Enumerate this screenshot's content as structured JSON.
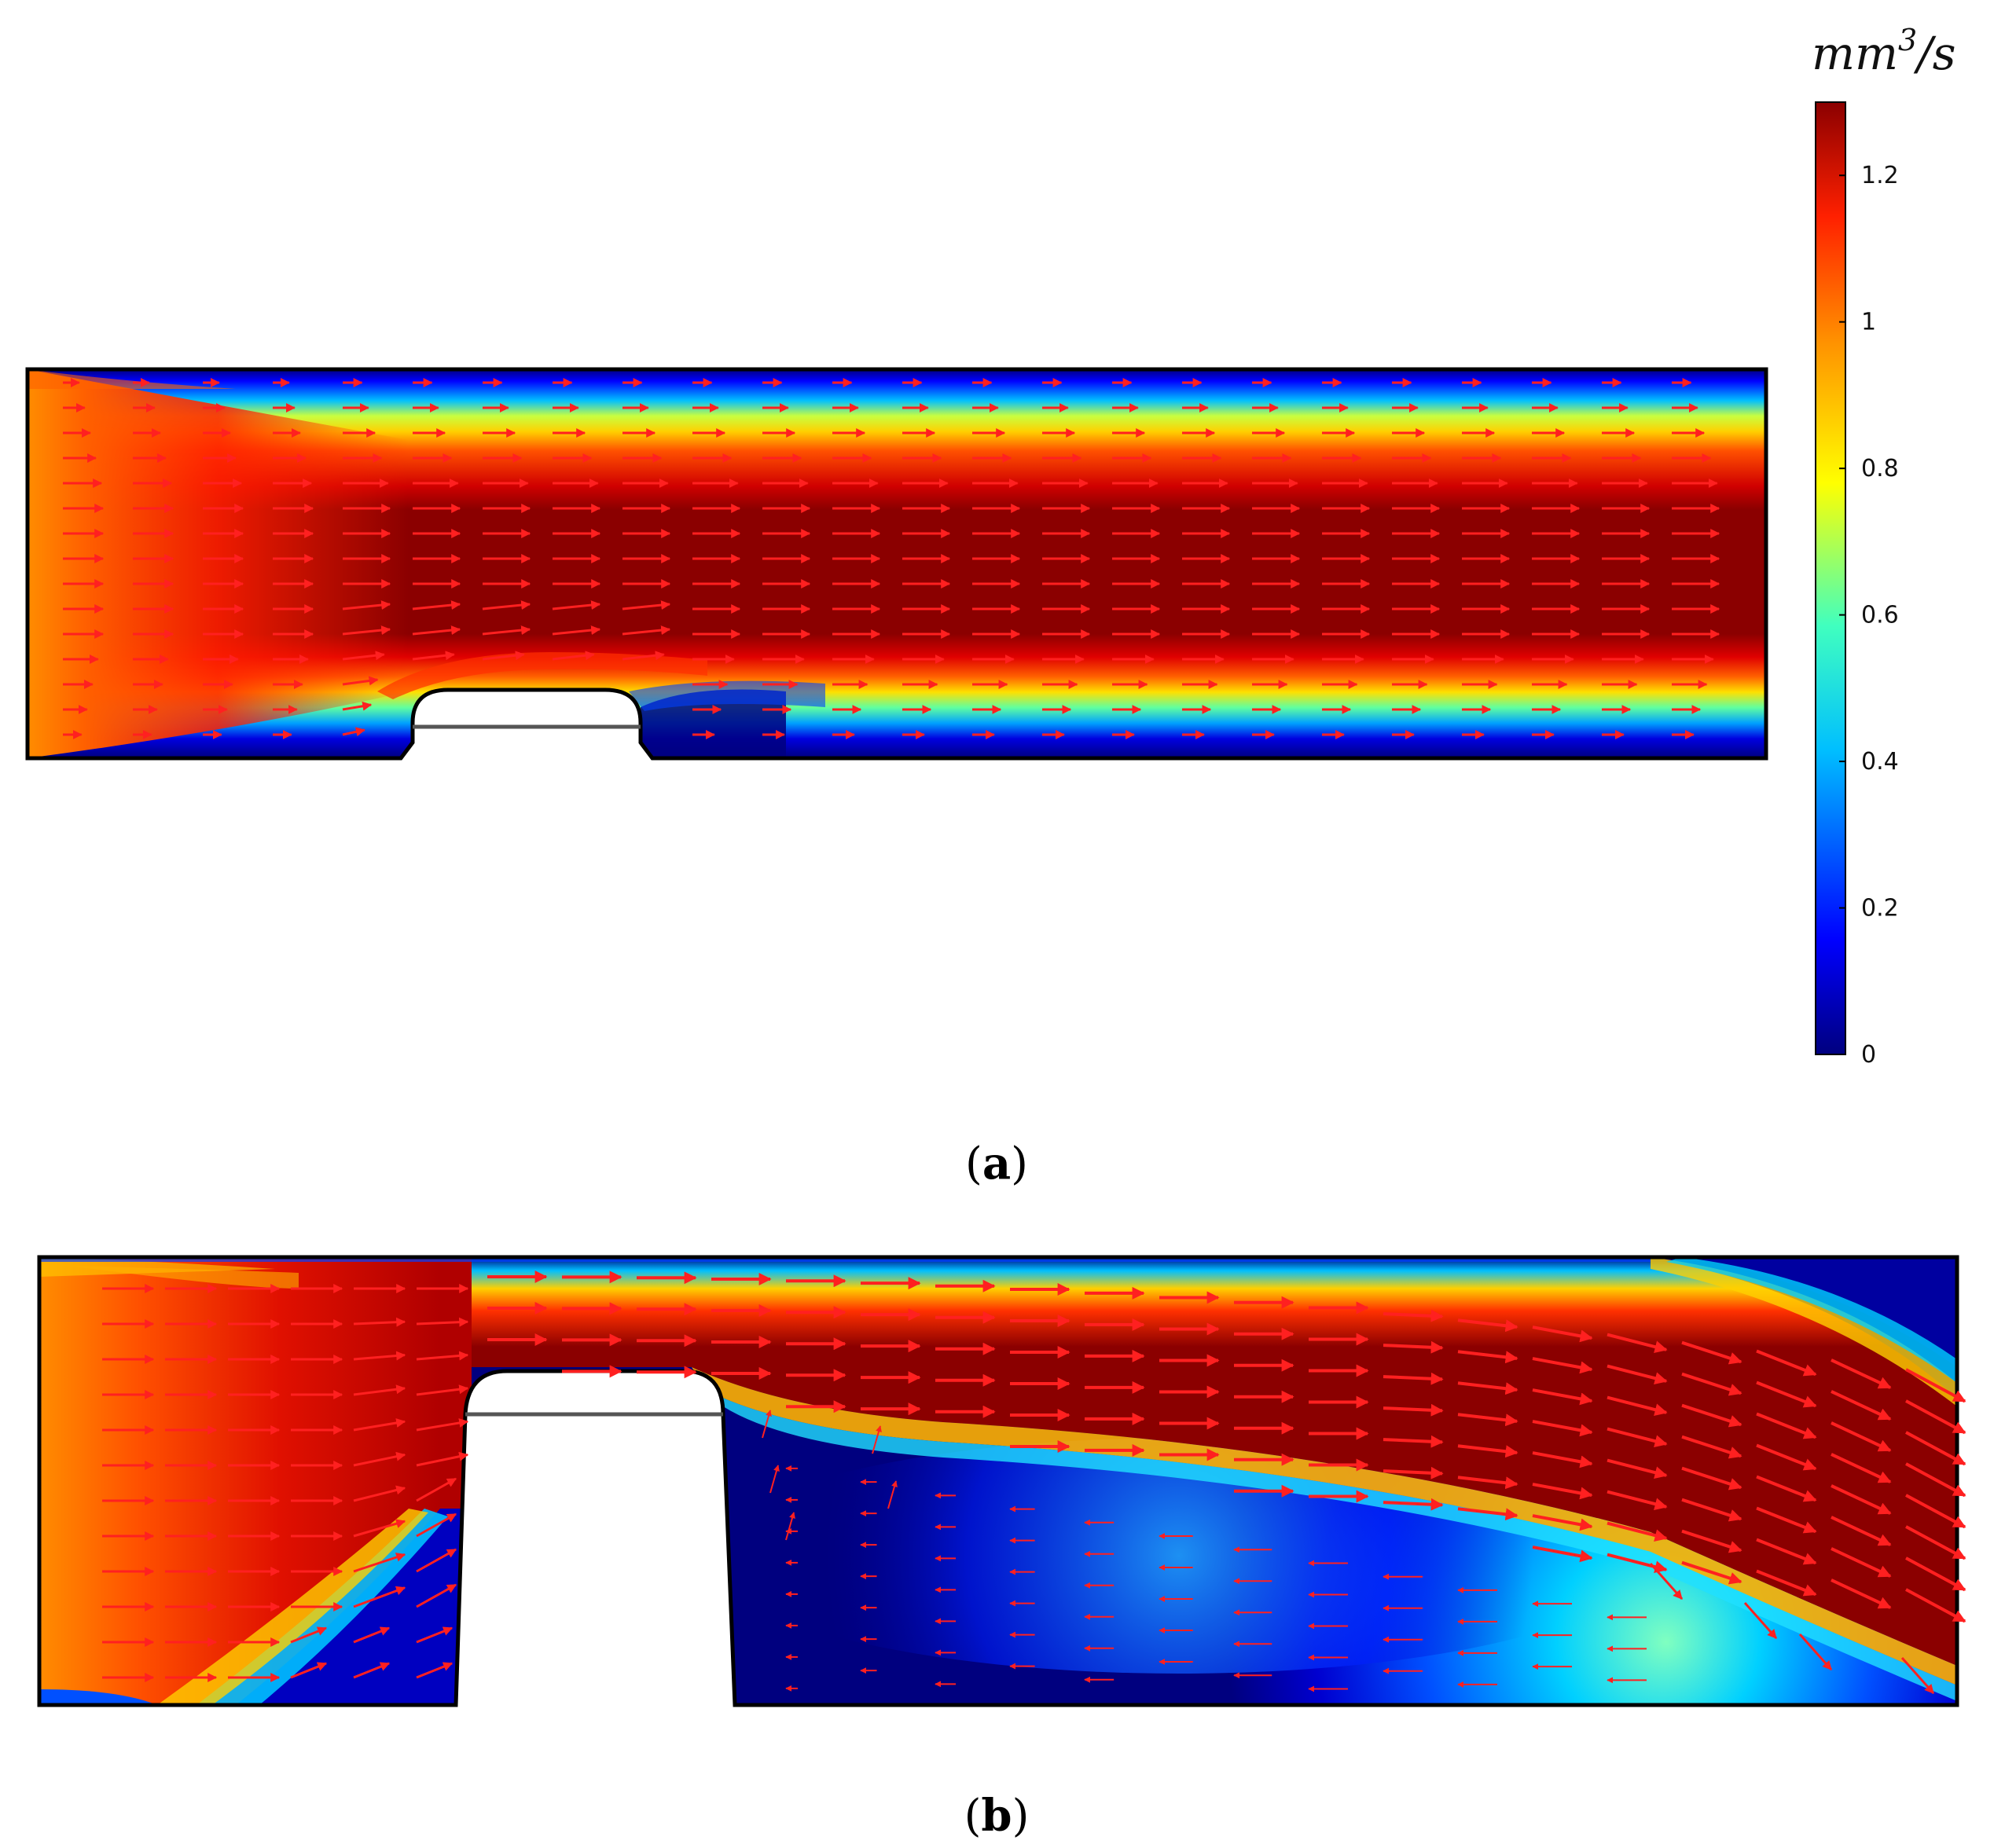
{
  "colorbar": {
    "unit_base": "mm",
    "unit_exp": "3",
    "unit_tail": "/s",
    "min": 0,
    "max": 1.3,
    "ticks": [
      "0",
      "0.2",
      "0.4",
      "0.6",
      "0.8",
      "1",
      "1.2"
    ],
    "colors": [
      "#00007f",
      "#0000ff",
      "#00bfff",
      "#40ffbf",
      "#ffff00",
      "#ff9000",
      "#ff2000",
      "#8b0000"
    ]
  },
  "panel_a": {
    "label": "a"
  },
  "panel_b": {
    "label": "b"
  },
  "arrow_color": "#ff2020"
}
